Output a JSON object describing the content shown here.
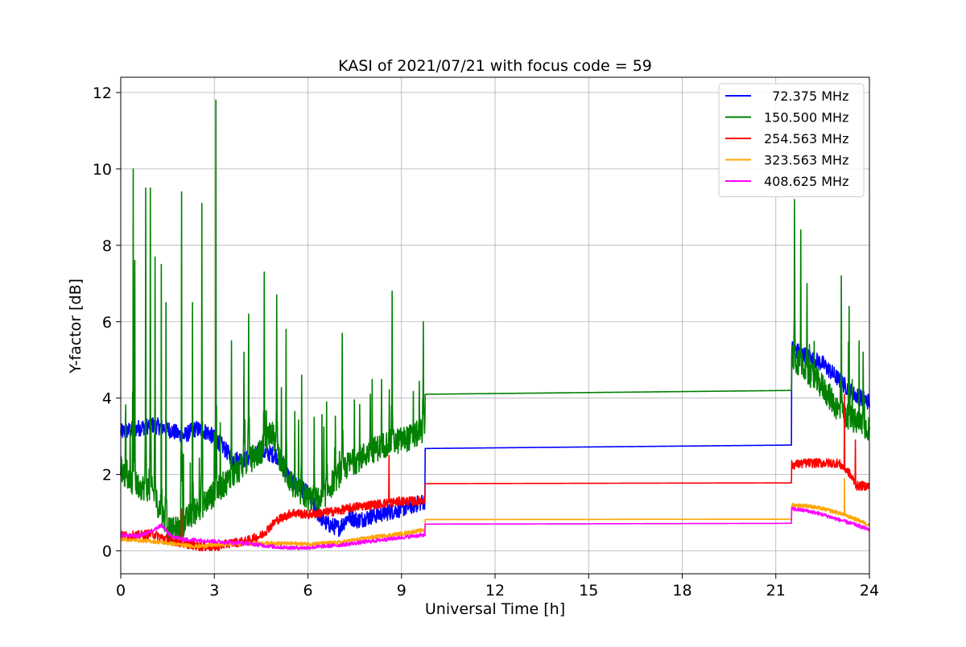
{
  "chart_data": {
    "type": "line",
    "title": "KASI of 2021/07/21 with focus code = 59",
    "xlabel": "Universal Time [h]",
    "ylabel": "Y-factor [dB]",
    "xlim": [
      0,
      24
    ],
    "ylim": [
      -0.6,
      12.4
    ],
    "xticks": [
      0,
      3,
      6,
      9,
      12,
      15,
      18,
      21,
      24
    ],
    "yticks": [
      0,
      2,
      4,
      6,
      8,
      10,
      12
    ],
    "grid": true,
    "legend_position": "top-right",
    "series": [
      {
        "name": "  72.375 MHz",
        "color": "#0000ff",
        "x": [
          0,
          0.5,
          1,
          1.5,
          2,
          2.4,
          2.8,
          3.2,
          3.6,
          4.0,
          4.5,
          5.0,
          5.5,
          6.0,
          6.3,
          6.6,
          7.0,
          7.3,
          7.6,
          8.0,
          8.5,
          9.0,
          9.4,
          9.75,
          9.76,
          21.5,
          21.51,
          22.0,
          22.5,
          23.0,
          23.5,
          24.0
        ],
        "y": [
          3.1,
          3.2,
          3.3,
          3.2,
          3.0,
          3.2,
          3.1,
          2.8,
          2.4,
          2.4,
          2.6,
          2.5,
          1.8,
          1.5,
          1.0,
          0.7,
          0.6,
          0.9,
          0.8,
          0.9,
          1.0,
          1.1,
          1.2,
          1.3,
          2.68,
          2.77,
          5.3,
          5.1,
          4.9,
          4.5,
          4.1,
          3.9
        ],
        "spikes": []
      },
      {
        "name": "150.500 MHz",
        "color": "#008000",
        "x": [
          0,
          0.3,
          0.6,
          1.0,
          1.3,
          1.6,
          1.9,
          2.2,
          2.6,
          3.0,
          3.5,
          4.0,
          4.5,
          4.8,
          5.2,
          5.6,
          6.0,
          6.4,
          6.8,
          7.2,
          7.6,
          8.0,
          8.5,
          9.0,
          9.4,
          9.75,
          9.76,
          21.5,
          21.51,
          22.0,
          22.5,
          23.0,
          23.5,
          24.0
        ],
        "y": [
          2.2,
          1.8,
          1.7,
          1.6,
          1.0,
          0.5,
          0.6,
          0.9,
          1.2,
          1.5,
          1.9,
          2.3,
          2.6,
          3.2,
          2.2,
          1.6,
          1.4,
          1.3,
          1.8,
          2.2,
          2.4,
          2.6,
          2.8,
          2.9,
          3.0,
          3.2,
          4.1,
          4.2,
          5.1,
          4.7,
          4.3,
          3.7,
          3.4,
          3.2
        ],
        "spikes": [
          [
            0.4,
            10.0
          ],
          [
            0.45,
            7.6
          ],
          [
            0.8,
            9.5
          ],
          [
            0.95,
            9.5
          ],
          [
            1.1,
            7.3
          ],
          [
            1.3,
            7.5
          ],
          [
            1.45,
            6.5
          ],
          [
            1.95,
            9.4
          ],
          [
            2.3,
            6.5
          ],
          [
            2.6,
            9.1
          ],
          [
            3.05,
            11.8
          ],
          [
            3.55,
            5.5
          ],
          [
            3.95,
            5.2
          ],
          [
            4.1,
            6.2
          ],
          [
            4.6,
            7.3
          ],
          [
            5.0,
            6.7
          ],
          [
            5.3,
            5.8
          ],
          [
            5.8,
            4.6
          ],
          [
            6.2,
            3.5
          ],
          [
            6.6,
            3.9
          ],
          [
            7.1,
            5.7
          ],
          [
            8.0,
            4.1
          ],
          [
            8.7,
            6.8
          ],
          [
            9.7,
            6.0
          ],
          [
            21.6,
            9.2
          ],
          [
            21.8,
            8.4
          ],
          [
            22.0,
            7.0
          ],
          [
            23.1,
            7.2
          ],
          [
            23.35,
            6.4
          ],
          [
            23.8,
            5.2
          ]
        ]
      },
      {
        "name": "254.563 MHz",
        "color": "#ff0000",
        "x": [
          0,
          0.5,
          1.0,
          1.5,
          2.0,
          2.5,
          3.0,
          3.5,
          4.0,
          4.5,
          5.0,
          5.5,
          6.0,
          6.5,
          7.0,
          7.5,
          8.0,
          8.5,
          9.0,
          9.5,
          9.75,
          9.76,
          21.5,
          21.51,
          22.0,
          22.5,
          23.0,
          23.3,
          23.6,
          24.0
        ],
        "y": [
          0.4,
          0.4,
          0.45,
          0.3,
          0.2,
          0.12,
          0.1,
          0.2,
          0.25,
          0.4,
          0.8,
          1.0,
          0.95,
          1.0,
          1.05,
          1.15,
          1.2,
          1.25,
          1.3,
          1.3,
          1.35,
          1.76,
          1.78,
          2.25,
          2.3,
          2.3,
          2.3,
          2.1,
          1.7,
          1.7
        ],
        "spikes": [
          [
            1.95,
            1.1
          ],
          [
            8.6,
            2.5
          ],
          [
            23.2,
            4.1
          ],
          [
            23.55,
            2.9
          ]
        ]
      },
      {
        "name": "323.563 MHz",
        "color": "#ffa500",
        "x": [
          0,
          0.5,
          1.0,
          1.5,
          2.0,
          2.5,
          3.0,
          3.5,
          4.0,
          5.0,
          6.0,
          7.0,
          8.0,
          9.0,
          9.75,
          9.76,
          21.5,
          21.51,
          22.0,
          22.5,
          23.0,
          23.5,
          24.0
        ],
        "y": [
          0.3,
          0.28,
          0.25,
          0.2,
          0.15,
          0.12,
          0.15,
          0.18,
          0.2,
          0.2,
          0.18,
          0.22,
          0.35,
          0.45,
          0.55,
          0.82,
          0.83,
          1.2,
          1.18,
          1.1,
          1.0,
          0.85,
          0.68
        ],
        "spikes": [
          [
            23.2,
            1.9
          ]
        ]
      },
      {
        "name": "408.625 MHz",
        "color": "#ff00ff",
        "x": [
          0,
          0.5,
          1.0,
          1.3,
          1.6,
          2.0,
          2.5,
          3.0,
          3.5,
          4.0,
          4.5,
          5.0,
          5.5,
          6.0,
          6.5,
          7.0,
          7.5,
          8.0,
          8.5,
          9.0,
          9.75,
          9.76,
          21.5,
          21.51,
          22.0,
          22.5,
          23.0,
          23.5,
          24.0
        ],
        "y": [
          0.42,
          0.38,
          0.5,
          0.68,
          0.4,
          0.3,
          0.28,
          0.25,
          0.22,
          0.2,
          0.15,
          0.1,
          0.08,
          0.08,
          0.12,
          0.15,
          0.2,
          0.25,
          0.3,
          0.35,
          0.42,
          0.7,
          0.72,
          1.1,
          1.05,
          0.95,
          0.82,
          0.7,
          0.55
        ],
        "spikes": []
      }
    ]
  }
}
